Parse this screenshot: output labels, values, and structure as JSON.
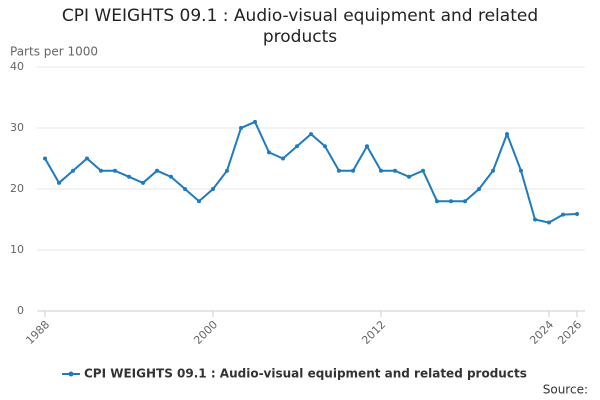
{
  "chart_data": {
    "type": "line",
    "title": "CPI WEIGHTS 09.1 : Audio-visual equipment and related products",
    "y_label": "Parts per 1000",
    "source": "Source:",
    "x": [
      1988,
      1989,
      1990,
      1991,
      1992,
      1993,
      1994,
      1995,
      1996,
      1997,
      1998,
      1999,
      2000,
      2001,
      2002,
      2003,
      2004,
      2005,
      2006,
      2007,
      2008,
      2009,
      2010,
      2011,
      2012,
      2013,
      2014,
      2015,
      2016,
      2017,
      2018,
      2019,
      2020,
      2021,
      2022,
      2023,
      2024,
      2025,
      2026
    ],
    "series": [
      {
        "name": "CPI WEIGHTS 09.1 : Audio-visual equipment and related products",
        "color": "#1f7bbf",
        "values": [
          25,
          21,
          23,
          25,
          23,
          23,
          22,
          21,
          23,
          22,
          20,
          18,
          20,
          23,
          30,
          31,
          26,
          25,
          27,
          29,
          27,
          23,
          23,
          27,
          23,
          23,
          22,
          23,
          18,
          18,
          18,
          20,
          23,
          29,
          23,
          15,
          14.5,
          15.8,
          15.9
        ]
      }
    ],
    "xlim": [
      1988,
      2026
    ],
    "xticks": [
      1988,
      2000,
      2012,
      2024,
      2026
    ],
    "ylim": [
      0,
      40
    ],
    "yticks": [
      0,
      10,
      20,
      30,
      40
    ],
    "grid": true
  }
}
